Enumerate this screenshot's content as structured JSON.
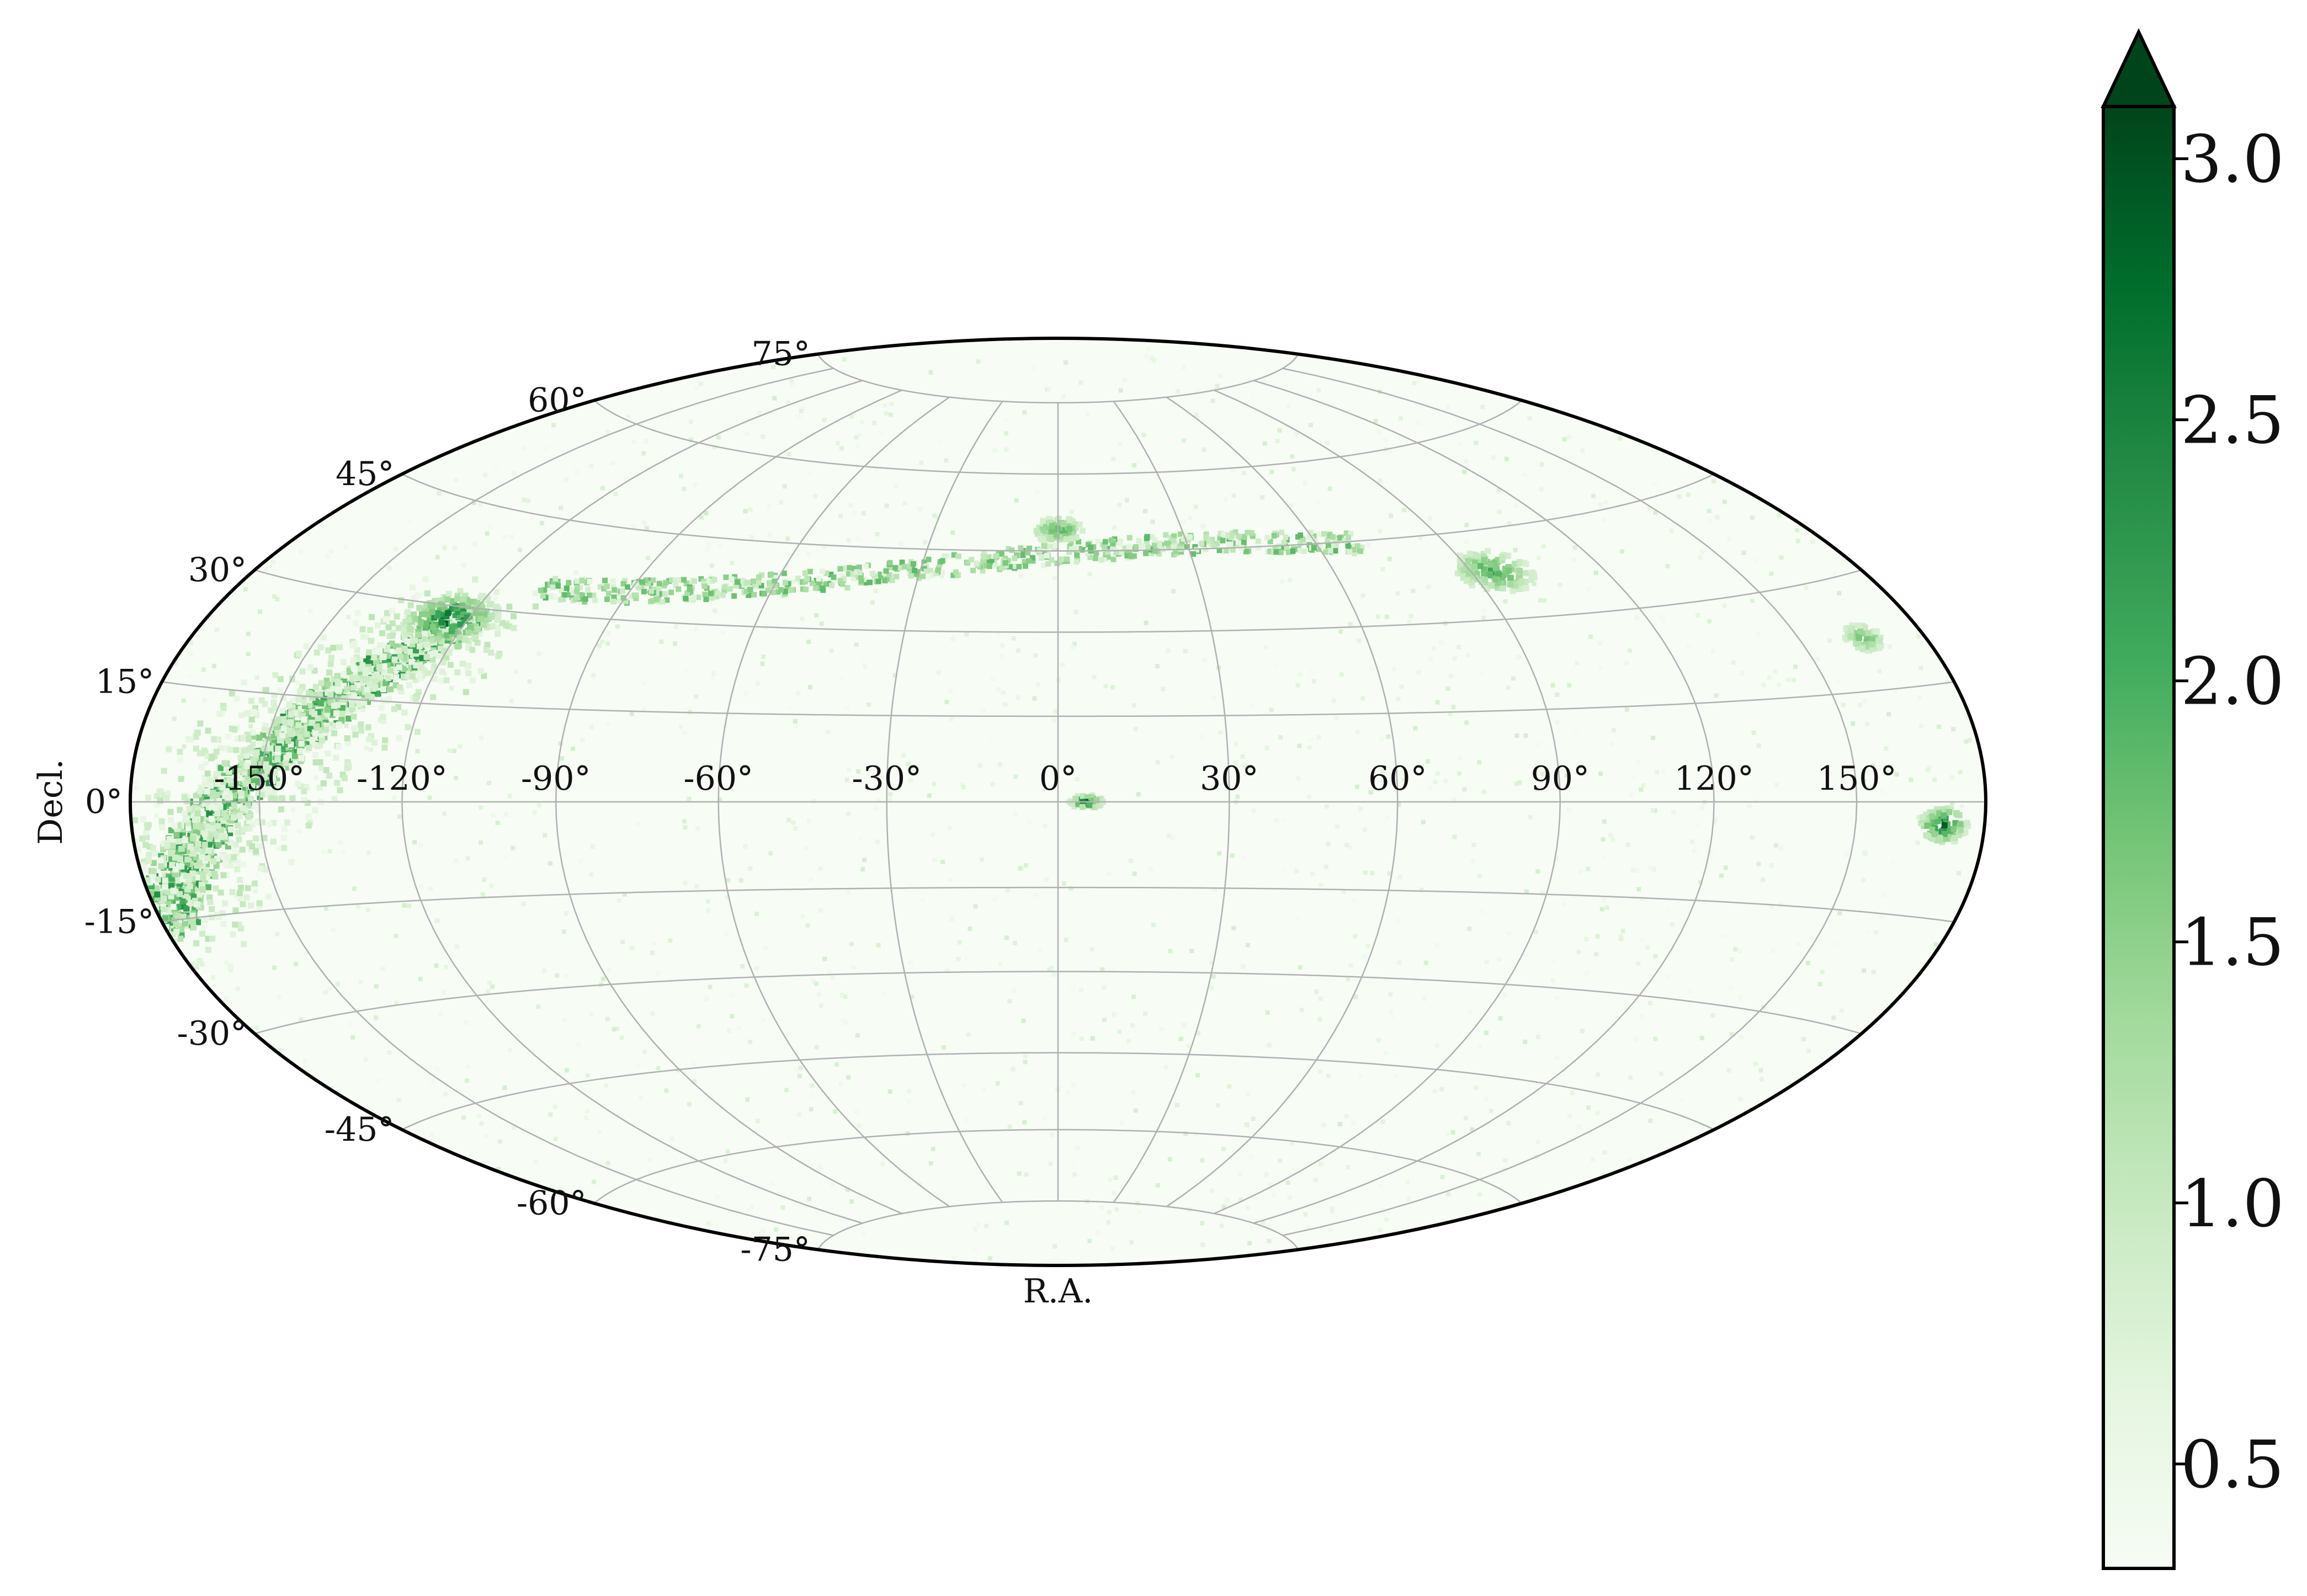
{
  "chart_data": {
    "type": "heatmap",
    "projection": "hammer-aitoff",
    "title": "",
    "xlabel": "R.A.",
    "ylabel": "Decl.",
    "ra_ticks": [
      "-150°",
      "-120°",
      "-90°",
      "-60°",
      "-30°",
      "0°",
      "30°",
      "60°",
      "90°",
      "120°",
      "150°"
    ],
    "ra_tick_values": [
      -150,
      -120,
      -90,
      -60,
      -30,
      0,
      30,
      60,
      90,
      120,
      150
    ],
    "dec_ticks": [
      "75°",
      "60°",
      "45°",
      "30°",
      "15°",
      "0°",
      "-15°",
      "-30°",
      "-45°",
      "-60°",
      "-75°"
    ],
    "dec_tick_values": [
      75,
      60,
      45,
      30,
      15,
      0,
      -15,
      -30,
      -45,
      -60,
      -75
    ],
    "grid": true,
    "colormap": "Greens",
    "colorbar": {
      "ticks": [
        "0.5",
        "1.0",
        "1.5",
        "2.0",
        "2.5",
        "3.0"
      ],
      "tick_values": [
        0.5,
        1.0,
        1.5,
        2.0,
        2.5,
        3.0
      ],
      "vmin": 0.3,
      "vmax": 3.1,
      "extend": "max"
    },
    "background_level": 0.35,
    "features": [
      {
        "kind": "band",
        "ra_start": -178,
        "dec_start": -15,
        "ra_end": -120,
        "dec_end": 28,
        "value": 2.4,
        "width_deg": 5
      },
      {
        "kind": "cluster",
        "ra": -124,
        "dec": 28,
        "value": 3.0,
        "size_deg": 7
      },
      {
        "kind": "arc",
        "ra_start": -110,
        "ra_end": 70,
        "dec_center": 40,
        "value": 1.9,
        "width_deg": 4
      },
      {
        "kind": "cluster",
        "ra": 0,
        "dec": 49,
        "value": 2.2,
        "size_deg": 4
      },
      {
        "kind": "cluster",
        "ra": 95,
        "dec": 38,
        "value": 2.2,
        "size_deg": 6
      },
      {
        "kind": "cluster",
        "ra": 5,
        "dec": 0,
        "value": 2.8,
        "size_deg": 2
      },
      {
        "kind": "cluster",
        "ra": 170,
        "dec": -3,
        "value": 2.8,
        "size_deg": 4
      },
      {
        "kind": "cluster",
        "ra": 165,
        "dec": 22,
        "value": 2.0,
        "size_deg": 3
      }
    ]
  }
}
